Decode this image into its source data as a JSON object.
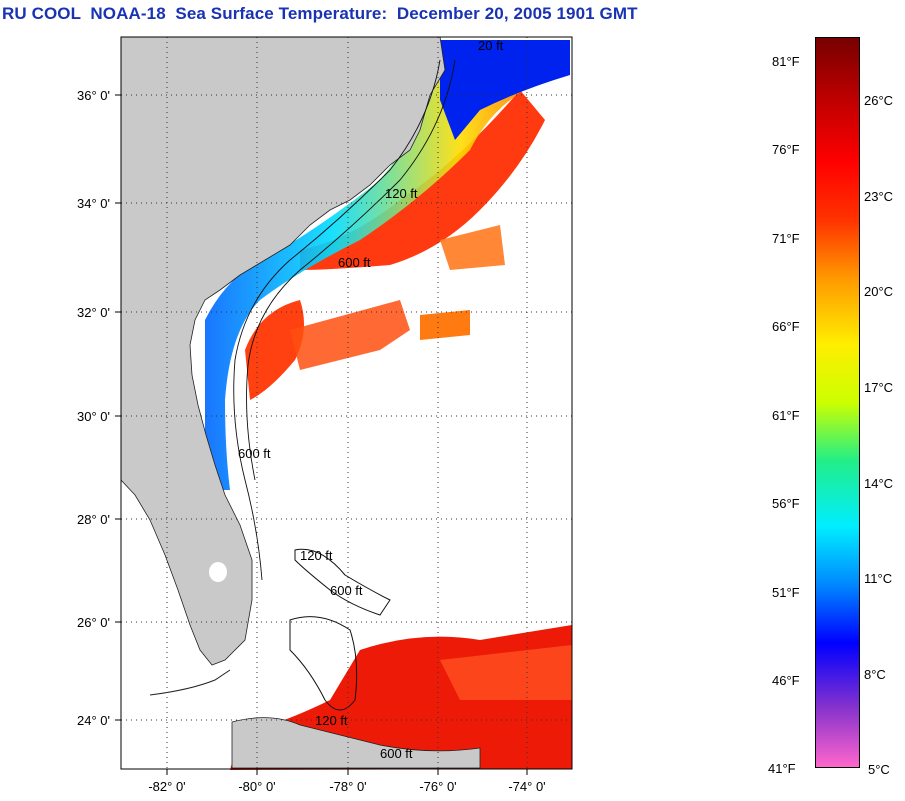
{
  "title": "RU COOL  NOAA-18  Sea Surface Temperature:  December 20, 2005 1901 GMT",
  "map": {
    "land_color": "#c9c9c9",
    "ocean_color": "#ffffff",
    "lat_labels": [
      "36° 0'",
      "34° 0'",
      "32° 0'",
      "30° 0'",
      "28° 0'",
      "26° 0'",
      "24° 0'"
    ],
    "lon_labels": [
      "-82° 0'",
      "-80° 0'",
      "-78° 0'",
      "-76° 0'",
      "-74° 0'"
    ],
    "contour_labels": [
      "20 ft",
      "120 ft",
      "600 ft",
      "600 ft",
      "120 ft",
      "600 ft",
      "120 ft",
      "600 ft"
    ]
  },
  "colorbar": {
    "fahrenheit_labels": [
      "81°F",
      "76°F",
      "71°F",
      "66°F",
      "61°F",
      "56°F",
      "51°F",
      "46°F",
      "41°F"
    ],
    "celsius_labels": [
      "26°C",
      "23°C",
      "20°C",
      "17°C",
      "14°C",
      "11°C",
      "8°C",
      "5°C"
    ],
    "colors": [
      "#ff66cc",
      "#8833cc",
      "#0000ff",
      "#0088ff",
      "#00eeff",
      "#22ee88",
      "#ccff00",
      "#ffee00",
      "#ff9900",
      "#ff3300",
      "#ff0000",
      "#bb0000",
      "#770000"
    ]
  }
}
